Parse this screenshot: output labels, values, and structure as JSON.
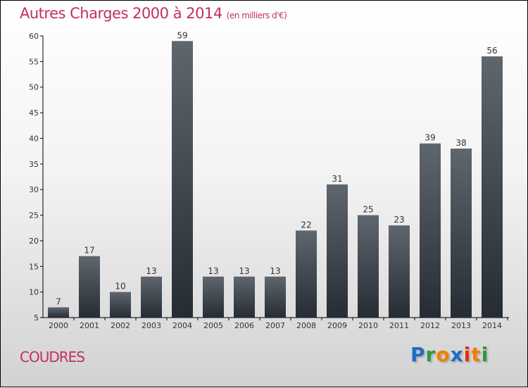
{
  "chart_data": {
    "type": "bar",
    "title": "Autres Charges 2000 à 2014",
    "subtitle": "(en milliers d'€)",
    "categories": [
      "2000",
      "2001",
      "2002",
      "2003",
      "2004",
      "2005",
      "2006",
      "2007",
      "2008",
      "2009",
      "2010",
      "2011",
      "2012",
      "2013",
      "2014"
    ],
    "values": [
      7,
      17,
      10,
      13,
      59,
      13,
      13,
      13,
      22,
      31,
      25,
      23,
      39,
      38,
      56
    ],
    "ylim": [
      5,
      60
    ],
    "yticks": [
      5,
      10,
      15,
      20,
      25,
      30,
      35,
      40,
      45,
      50,
      55,
      60
    ],
    "xlabel": "",
    "ylabel": "",
    "grid": false
  },
  "town": "COUDRES",
  "logo": {
    "letters": [
      "P",
      "r",
      "o",
      "x",
      "i",
      "t",
      "i"
    ],
    "colors": [
      "#1a6fc4",
      "#2a9a3a",
      "#f08000",
      "#1a6fc4",
      "#e03010",
      "#f08000",
      "#2a9a3a"
    ]
  }
}
